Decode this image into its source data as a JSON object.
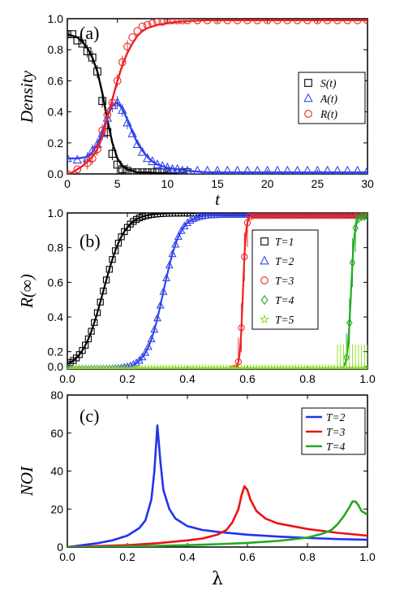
{
  "chart_data": [
    {
      "type": "line",
      "panel_label": "(a)",
      "xlabel": "t",
      "ylabel": "Density",
      "xlim": [
        0,
        30
      ],
      "ylim": [
        0,
        1.0
      ],
      "xticks": [
        0,
        5,
        10,
        15,
        20,
        25,
        30
      ],
      "yticks": [
        0,
        0.2,
        0.4,
        0.6,
        0.8,
        1.0
      ],
      "xtick_labels": [
        "0",
        "5",
        "10",
        "15",
        "20",
        "25",
        "30"
      ],
      "ytick_labels": [
        "0.0",
        "0.2",
        "0.4",
        "0.6",
        "0.8",
        "1.0"
      ],
      "grid": false,
      "legend_position": "center-right",
      "series": [
        {
          "name": "S(t)",
          "color": "#000000",
          "marker": "square",
          "x": [
            0,
            0.5,
            1,
            1.5,
            2,
            2.5,
            3,
            3.5,
            4,
            4.5,
            5,
            5.5,
            6,
            6.5,
            7,
            7.5,
            8,
            8.5,
            9,
            9.5,
            10,
            10.5,
            11,
            11.5,
            12
          ],
          "y": [
            0.9,
            0.9,
            0.86,
            0.84,
            0.79,
            0.75,
            0.66,
            0.47,
            0.27,
            0.13,
            0.06,
            0.03,
            0.02,
            0.01,
            0.01,
            0.01,
            0.01,
            0.01,
            0.01,
            0.01,
            0.01,
            0.01,
            0.01,
            0.01,
            0.01
          ],
          "line": {
            "x": [
              0,
              0.5,
              1,
              1.5,
              2,
              2.5,
              3,
              3.5,
              4,
              4.5,
              5,
              5.5,
              6,
              6.5,
              7,
              8,
              9,
              10,
              11,
              12
            ],
            "y": [
              0.9,
              0.89,
              0.88,
              0.85,
              0.81,
              0.75,
              0.66,
              0.52,
              0.35,
              0.2,
              0.1,
              0.05,
              0.03,
              0.02,
              0.01,
              0.01,
              0.005,
              0.005,
              0.005,
              0.005
            ]
          }
        },
        {
          "name": "A(t)",
          "color": "#3344ee",
          "marker": "triangle",
          "x": [
            0,
            1,
            2,
            2.5,
            3,
            3.5,
            4,
            4.5,
            5,
            5.5,
            6,
            6.5,
            7,
            7.5,
            8,
            8.5,
            9,
            9.5,
            10,
            10.5,
            11,
            11.5,
            12,
            13,
            14,
            15,
            16,
            17,
            18,
            19,
            20,
            21,
            22,
            23,
            24,
            25,
            26,
            27,
            28,
            29,
            30
          ],
          "y": [
            0.1,
            0.09,
            0.1,
            0.15,
            0.19,
            0.26,
            0.36,
            0.44,
            0.46,
            0.41,
            0.33,
            0.26,
            0.19,
            0.14,
            0.1,
            0.08,
            0.06,
            0.05,
            0.04,
            0.03,
            0.03,
            0.02,
            0.02,
            0.02,
            0.02,
            0.02,
            0.02,
            0.02,
            0.02,
            0.02,
            0.02,
            0.02,
            0.02,
            0.02,
            0.02,
            0.02,
            0.02,
            0.02,
            0.02,
            0.02,
            0.02
          ],
          "line": {
            "x": [
              0,
              1,
              2,
              2.5,
              3,
              3.5,
              4,
              4.5,
              5,
              5.5,
              6,
              6.5,
              7,
              7.5,
              8,
              8.5,
              9,
              10,
              11,
              12,
              13,
              14,
              16,
              20,
              25,
              30
            ],
            "y": [
              0.1,
              0.1,
              0.11,
              0.14,
              0.19,
              0.27,
              0.37,
              0.44,
              0.46,
              0.42,
              0.35,
              0.27,
              0.2,
              0.15,
              0.11,
              0.08,
              0.06,
              0.04,
              0.03,
              0.02,
              0.015,
              0.01,
              0.01,
              0.01,
              0.01,
              0.01
            ]
          }
        },
        {
          "name": "R(t)",
          "color": "#ee2222",
          "marker": "circle",
          "x": [
            0,
            1,
            2,
            2.5,
            3,
            3.5,
            4,
            4.5,
            5,
            5.5,
            6,
            6.5,
            7,
            7.5,
            8,
            8.5,
            9,
            9.5,
            10,
            10.5,
            11,
            11.5,
            12,
            13,
            14,
            15,
            16,
            17,
            18,
            19,
            20,
            21,
            22,
            23,
            24,
            25,
            26,
            27,
            28,
            29,
            30
          ],
          "y": [
            0.0,
            0.03,
            0.07,
            0.1,
            0.16,
            0.28,
            0.38,
            0.46,
            0.6,
            0.72,
            0.82,
            0.88,
            0.92,
            0.95,
            0.96,
            0.97,
            0.98,
            0.98,
            0.99,
            0.99,
            0.99,
            0.99,
            0.99,
            0.99,
            0.99,
            0.99,
            0.99,
            0.99,
            0.99,
            0.99,
            0.99,
            0.99,
            0.99,
            0.99,
            0.99,
            0.99,
            0.99,
            0.99,
            0.99,
            0.99,
            0.99
          ],
          "line": {
            "x": [
              0,
              0.5,
              1,
              1.5,
              2,
              2.5,
              3,
              3.5,
              4,
              4.5,
              5,
              5.5,
              6,
              6.5,
              7,
              7.5,
              8,
              9,
              10,
              11,
              12,
              14,
              16,
              20,
              25,
              30
            ],
            "y": [
              0.0,
              0.01,
              0.03,
              0.05,
              0.08,
              0.11,
              0.16,
              0.24,
              0.36,
              0.48,
              0.6,
              0.7,
              0.78,
              0.84,
              0.89,
              0.92,
              0.94,
              0.96,
              0.97,
              0.98,
              0.985,
              0.99,
              0.99,
              0.99,
              0.99,
              0.99
            ]
          }
        }
      ]
    },
    {
      "type": "line",
      "panel_label": "(b)",
      "xlabel": "",
      "ylabel": "R(∞)",
      "xlim": [
        0,
        1.0
      ],
      "ylim": [
        0.1,
        1.0
      ],
      "xticks": [
        0,
        0.2,
        0.4,
        0.6,
        0.8,
        1.0
      ],
      "yticks": [
        0.0,
        0.2,
        0.4,
        0.6,
        0.8,
        1.0
      ],
      "xtick_labels": [
        "0.0",
        "0.2",
        "0.4",
        "0.6",
        "0.8",
        "1.0"
      ],
      "ytick_labels": [
        "0.0",
        "0.2",
        "0.4",
        "0.6",
        "0.8",
        "1.0"
      ],
      "grid": false,
      "legend_position": "center-right",
      "series": [
        {
          "name": "T=1",
          "color": "#000000",
          "marker": "square",
          "params": {
            "center": 0.12,
            "width": 0.035,
            "lower": 0.1,
            "upper": 1.0,
            "marker_start": 0.0,
            "marker_end": 1.0
          }
        },
        {
          "name": "T=2",
          "color": "#3344ee",
          "marker": "triangle",
          "params": {
            "center": 0.32,
            "width": 0.028,
            "lower": 0.1,
            "upper": 0.99,
            "marker_start": 0.0,
            "marker_end": 1.0
          }
        },
        {
          "name": "T=3",
          "color": "#ee2222",
          "marker": "circle",
          "params": {
            "center": 0.585,
            "width": 0.005,
            "lower": 0.1,
            "upper": 0.985,
            "marker_start": 0.55,
            "marker_end": 1.0
          }
        },
        {
          "name": "T=4",
          "color": "#22aa22",
          "marker": "diamond",
          "params": {
            "center": 0.945,
            "width": 0.006,
            "lower": 0.1,
            "upper": 0.98,
            "marker_start": 0.93,
            "marker_end": 1.0
          }
        },
        {
          "name": "T=5",
          "color": "#88dd22",
          "marker": "star",
          "params": {
            "center": 2.0,
            "width": 0.01,
            "lower": 0.1,
            "upper": 0.1,
            "marker_start": 0.0,
            "marker_end": 1.0
          }
        }
      ]
    },
    {
      "type": "line",
      "panel_label": "(c)",
      "xlabel": "λ",
      "ylabel": "NOI",
      "xlim": [
        0,
        1.0
      ],
      "ylim": [
        0,
        80
      ],
      "xticks": [
        0,
        0.2,
        0.4,
        0.6,
        0.8,
        1.0
      ],
      "yticks": [
        0,
        20,
        40,
        60,
        80
      ],
      "xtick_labels": [
        "0.0",
        "0.2",
        "0.4",
        "0.6",
        "0.8",
        "1.0"
      ],
      "ytick_labels": [
        "0",
        "20",
        "40",
        "60",
        "80"
      ],
      "grid": false,
      "legend_position": "top-right",
      "series": [
        {
          "name": "T=2",
          "color": "#2233ee",
          "x": [
            0,
            0.05,
            0.1,
            0.15,
            0.2,
            0.24,
            0.26,
            0.28,
            0.29,
            0.3,
            0.31,
            0.32,
            0.34,
            0.36,
            0.4,
            0.45,
            0.5,
            0.6,
            0.7,
            0.8,
            0.9,
            1.0
          ],
          "y": [
            0,
            1,
            2,
            3.5,
            6,
            10,
            14,
            25,
            40,
            64,
            45,
            30,
            20,
            15,
            11,
            9,
            8,
            6.5,
            5.5,
            4.8,
            4.2,
            3.8
          ]
        },
        {
          "name": "T=3",
          "color": "#ee1111",
          "x": [
            0,
            0.1,
            0.2,
            0.3,
            0.4,
            0.45,
            0.5,
            0.53,
            0.55,
            0.57,
            0.58,
            0.59,
            0.6,
            0.61,
            0.63,
            0.66,
            0.7,
            0.8,
            0.9,
            1.0
          ],
          "y": [
            0,
            0.5,
            1,
            2,
            3.5,
            4.5,
            6.5,
            9,
            13,
            20,
            27,
            32,
            30,
            25,
            19,
            15,
            12.5,
            9.5,
            7.5,
            6
          ]
        },
        {
          "name": "T=4",
          "color": "#22aa22",
          "x": [
            0,
            0.1,
            0.2,
            0.3,
            0.4,
            0.5,
            0.6,
            0.7,
            0.75,
            0.8,
            0.85,
            0.88,
            0.9,
            0.92,
            0.94,
            0.95,
            0.96,
            0.97,
            0.98,
            1.0
          ],
          "y": [
            0,
            0.1,
            0.3,
            0.6,
            1,
            1.5,
            2.2,
            3.2,
            4,
            5,
            7,
            9,
            12,
            16,
            21,
            24,
            24,
            22,
            19,
            17
          ]
        }
      ]
    }
  ]
}
